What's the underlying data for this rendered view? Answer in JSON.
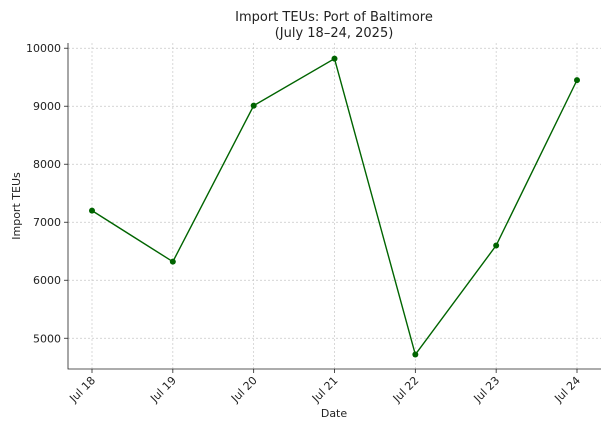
{
  "chart_data": {
    "type": "line",
    "title": "Import TEUs: Port of Baltimore",
    "subtitle": "(July 18–24, 2025)",
    "x_label": "Date",
    "y_label": "Import TEUs",
    "categories": [
      "Jul 18",
      "Jul 19",
      "Jul 20",
      "Jul 21",
      "Jul 22",
      "Jul 23",
      "Jul 24"
    ],
    "series": [
      {
        "name": "Import TEUs",
        "color": "#006400",
        "values": [
          7200,
          6320,
          9010,
          9820,
          4720,
          6600,
          9450
        ]
      }
    ],
    "ylim": [
      4470,
      10090
    ],
    "yticks": [
      5000,
      6000,
      7000,
      8000,
      9000,
      10000
    ],
    "grid": true
  }
}
